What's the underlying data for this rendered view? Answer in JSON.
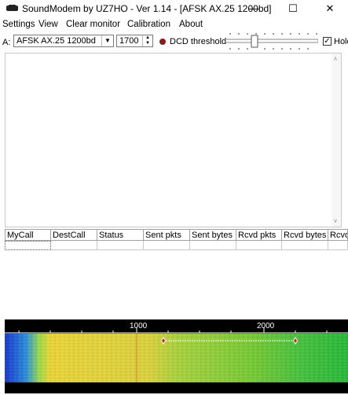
{
  "window": {
    "title": "SoundModem by UZ7HO - Ver 1.14 - [AFSK AX.25 1200bd]",
    "minimize_glyph": "—",
    "maximize_glyph": "☐",
    "close_glyph": "✕",
    "icon": "modem-icon"
  },
  "menu": [
    "Settings",
    "View",
    "Clear monitor",
    "Calibration",
    "About"
  ],
  "toolbar": {
    "modem_label": "A:",
    "mode_value": "AFSK AX.25 1200bd",
    "freq_value": "1700",
    "dcd_label": "DCD threshold",
    "hold_label": "Hold",
    "hold_checked": true,
    "dcd_indicator_color": "#8b1a1a"
  },
  "table": {
    "columns": [
      "MyCall",
      "DestCall",
      "Status",
      "Sent pkts",
      "Sent bytes",
      "Rcvd pkts",
      "Rcvd bytes",
      "Rcvd"
    ]
  },
  "waterfall": {
    "ticks": [
      "1000",
      "2000"
    ],
    "marker_color": "#cc2222"
  }
}
